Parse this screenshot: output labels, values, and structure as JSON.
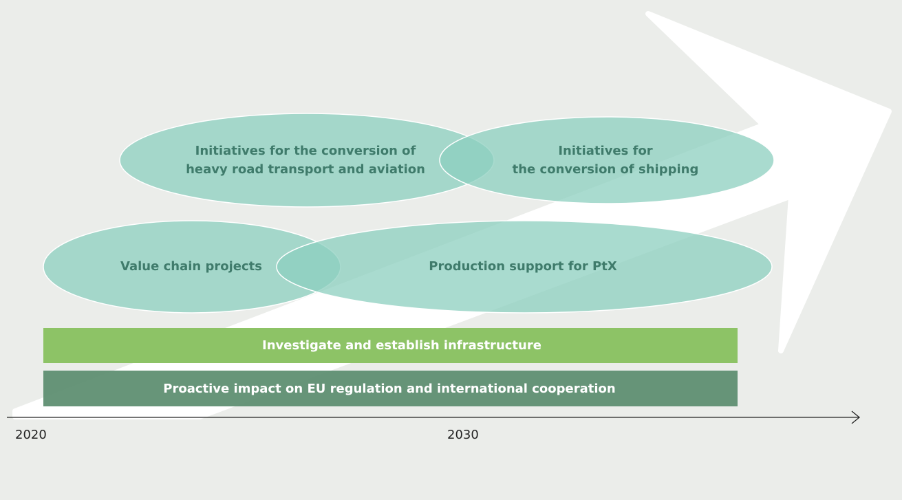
{
  "ellipses": [
    {
      "lines": [
        "Initiatives for the conversion of",
        "heavy road transport and aviation"
      ]
    },
    {
      "lines": [
        "Initiatives for",
        "the conversion of shipping"
      ]
    },
    {
      "lines": [
        "Value chain projects"
      ]
    },
    {
      "lines": [
        "Production support for PtX"
      ]
    }
  ],
  "bars": [
    {
      "label": "Investigate and establish infrastructure"
    },
    {
      "label": "Proactive impact on EU regulation and international cooperation"
    }
  ],
  "axis": {
    "labels": [
      "2020",
      "2030"
    ]
  }
}
